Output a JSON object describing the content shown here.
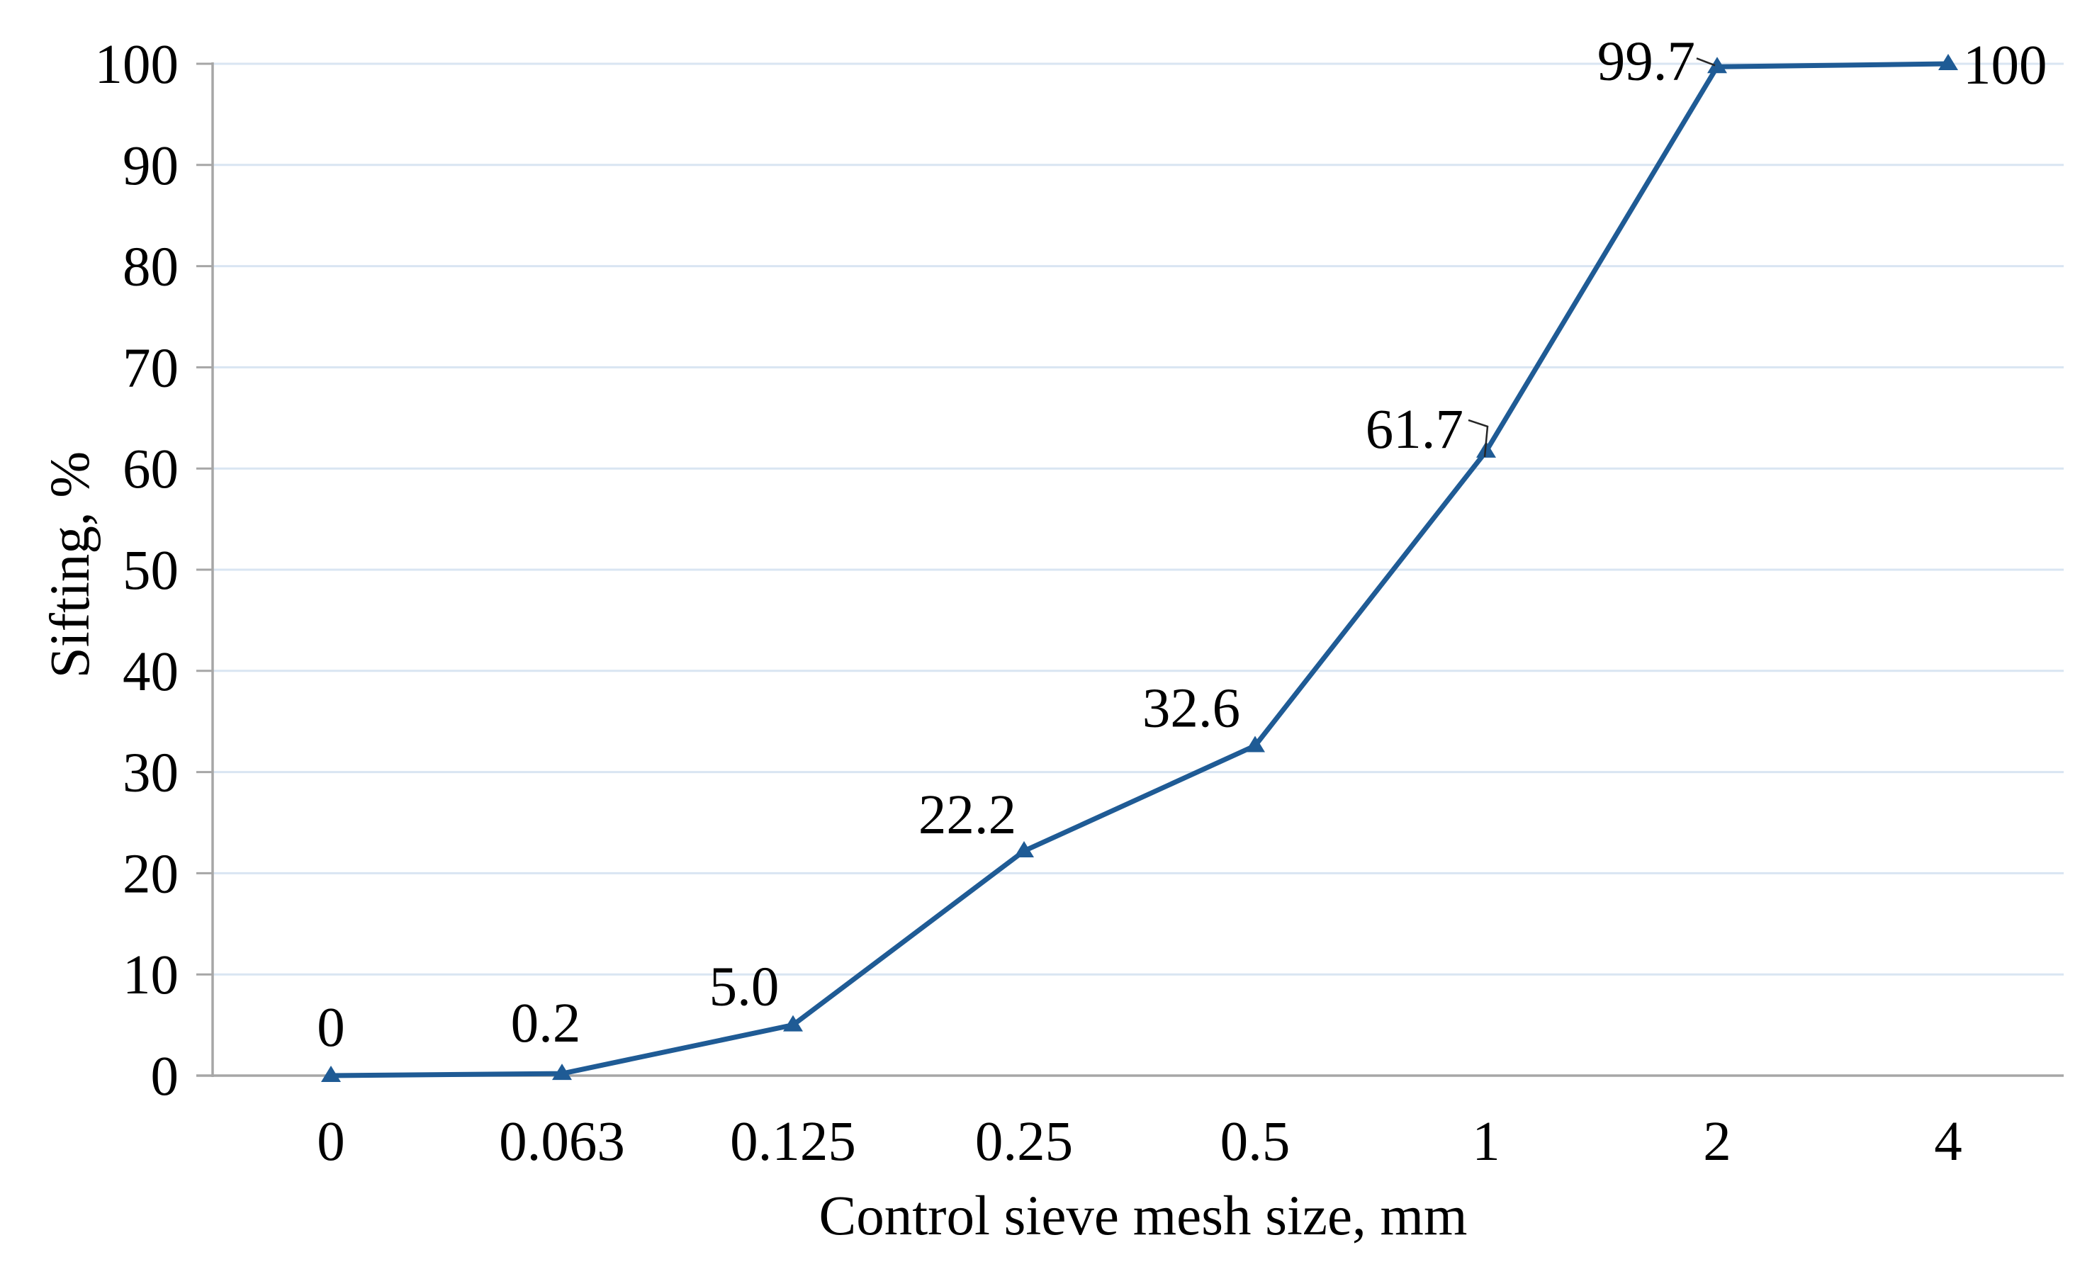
{
  "figure": {
    "background": "#ffffff"
  },
  "chart_data": {
    "type": "line",
    "title": "",
    "xlabel": "Control sieve mesh size, mm",
    "ylabel": "Sifting, %",
    "categories": [
      "0",
      "0.063",
      "0.125",
      "0.25",
      "0.5",
      "1",
      "2",
      "4"
    ],
    "series": [
      {
        "name": "Sifting",
        "color": "#1f5b95",
        "marker": "triangle-up",
        "values": [
          0,
          0.2,
          5.0,
          22.2,
          32.6,
          61.7,
          99.7,
          100
        ],
        "data_labels": [
          "0",
          "0.2",
          "5.0",
          "22.2",
          "32.6",
          "61.7",
          "99.7",
          "100"
        ]
      }
    ],
    "ylim": [
      0,
      100
    ],
    "ytick_interval": 10,
    "ytick_labels": [
      "0",
      "10",
      "20",
      "30",
      "40",
      "50",
      "60",
      "70",
      "80",
      "90",
      "100"
    ],
    "grid": "horizontal",
    "gridline_color": "#d9e5f2",
    "axis_color": "#a6a6a6",
    "leader_color": "#262626",
    "text_color": "#000000",
    "legend_position": "none"
  }
}
